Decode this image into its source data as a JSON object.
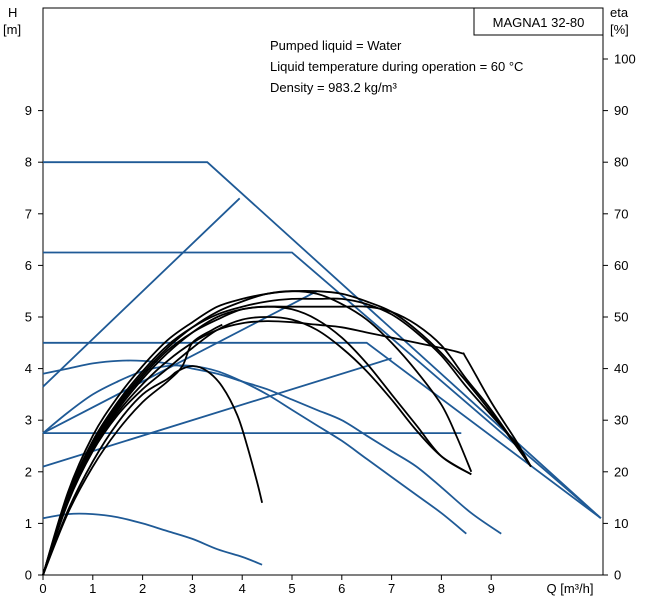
{
  "chart_data": {
    "type": "line",
    "title": "MAGNA1 32-80",
    "info_lines": [
      "Pumped liquid = Water",
      "Liquid temperature during operation = 60 °C",
      "Density = 983.2 kg/m³"
    ],
    "y_left": {
      "label_top": "H",
      "label_unit": "[m]",
      "ticks": [
        "0",
        "1",
        "2",
        "3",
        "4",
        "5",
        "6",
        "7",
        "8",
        "9"
      ],
      "range": [
        0,
        10
      ]
    },
    "y_right": {
      "label_top": "eta",
      "label_unit": "[%]",
      "ticks": [
        "0",
        "10",
        "20",
        "30",
        "40",
        "50",
        "60",
        "70",
        "80",
        "90",
        "100"
      ],
      "range": [
        0,
        100
      ]
    },
    "x": {
      "label": "Q [m³/h]",
      "ticks": [
        "0",
        "1",
        "2",
        "3",
        "4",
        "5",
        "6",
        "7",
        "8",
        "9"
      ],
      "range": [
        0,
        11.2
      ]
    },
    "colors": {
      "control": "#1f5a96",
      "efficiency": "#1f5a96",
      "performance": "#000000"
    },
    "control_curves": [
      {
        "points": [
          [
            0,
            8.0
          ],
          [
            3.3,
            8.0
          ],
          [
            11.2,
            1.1
          ]
        ]
      },
      {
        "points": [
          [
            0,
            6.25
          ],
          [
            5.0,
            6.25
          ],
          [
            11.2,
            1.1
          ]
        ]
      },
      {
        "points": [
          [
            0,
            4.5
          ],
          [
            6.5,
            4.5
          ],
          [
            11.2,
            1.1
          ]
        ]
      },
      {
        "points": [
          [
            0,
            2.75
          ],
          [
            8.4,
            2.75
          ]
        ]
      },
      {
        "points": [
          [
            0,
            3.65
          ],
          [
            3.95,
            7.3
          ]
        ]
      },
      {
        "points": [
          [
            0,
            2.75
          ],
          [
            5.5,
            5.5
          ]
        ]
      },
      {
        "points": [
          [
            0,
            2.1
          ],
          [
            7.0,
            4.2
          ]
        ]
      }
    ],
    "efficiency_curves": [
      {
        "points": [
          [
            0,
            3.9
          ],
          [
            0.5,
            4.0
          ],
          [
            1.0,
            4.1
          ],
          [
            1.5,
            4.15
          ],
          [
            2.0,
            4.15
          ],
          [
            2.5,
            4.1
          ],
          [
            3.0,
            4.0
          ],
          [
            3.5,
            3.9
          ],
          [
            4.0,
            3.75
          ],
          [
            4.5,
            3.6
          ],
          [
            5.0,
            3.4
          ],
          [
            5.5,
            3.2
          ],
          [
            6.0,
            3.0
          ],
          [
            6.5,
            2.7
          ],
          [
            7.0,
            2.4
          ],
          [
            7.5,
            2.1
          ],
          [
            8.0,
            1.7
          ],
          [
            8.6,
            1.2
          ],
          [
            9.2,
            0.8
          ]
        ]
      },
      {
        "points": [
          [
            0,
            2.75
          ],
          [
            0.5,
            3.15
          ],
          [
            1.0,
            3.5
          ],
          [
            1.5,
            3.75
          ],
          [
            2.0,
            3.95
          ],
          [
            2.5,
            4.05
          ],
          [
            3.0,
            4.05
          ],
          [
            3.5,
            3.95
          ],
          [
            4.0,
            3.75
          ],
          [
            4.5,
            3.5
          ],
          [
            5.0,
            3.2
          ],
          [
            5.5,
            2.9
          ],
          [
            6.0,
            2.6
          ],
          [
            6.5,
            2.25
          ],
          [
            7.0,
            1.9
          ],
          [
            7.5,
            1.55
          ],
          [
            8.0,
            1.2
          ],
          [
            8.5,
            0.8
          ]
        ]
      },
      {
        "points": [
          [
            0,
            1.1
          ],
          [
            0.5,
            1.18
          ],
          [
            1.0,
            1.18
          ],
          [
            1.5,
            1.12
          ],
          [
            2.0,
            1.0
          ],
          [
            2.5,
            0.85
          ],
          [
            3.0,
            0.7
          ],
          [
            3.5,
            0.5
          ],
          [
            4.0,
            0.35
          ],
          [
            4.4,
            0.2
          ]
        ]
      }
    ],
    "performance_curves": [
      {
        "points": [
          [
            0,
            0
          ],
          [
            0.5,
            1.6
          ],
          [
            1.0,
            2.7
          ],
          [
            1.5,
            3.45
          ],
          [
            2.0,
            4.05
          ],
          [
            2.5,
            4.55
          ],
          [
            3.0,
            4.9
          ],
          [
            3.5,
            5.2
          ],
          [
            4.0,
            5.35
          ],
          [
            4.5,
            5.45
          ],
          [
            5.0,
            5.5
          ],
          [
            5.5,
            5.5
          ],
          [
            6.0,
            5.45
          ],
          [
            6.5,
            5.3
          ],
          [
            7.0,
            5.1
          ],
          [
            7.5,
            4.75
          ],
          [
            8.0,
            4.3
          ],
          [
            8.5,
            3.75
          ],
          [
            9.0,
            3.15
          ],
          [
            9.5,
            2.5
          ],
          [
            9.8,
            2.1
          ]
        ]
      },
      {
        "points": [
          [
            0,
            0
          ],
          [
            0.5,
            1.55
          ],
          [
            1.0,
            2.6
          ],
          [
            1.5,
            3.35
          ],
          [
            2.0,
            3.95
          ],
          [
            2.5,
            4.45
          ],
          [
            3.0,
            4.8
          ],
          [
            3.5,
            5.05
          ],
          [
            4.0,
            5.2
          ],
          [
            4.5,
            5.3
          ],
          [
            5.0,
            5.35
          ],
          [
            5.5,
            5.35
          ],
          [
            6.0,
            5.35
          ],
          [
            6.5,
            5.25
          ],
          [
            7.0,
            5.05
          ],
          [
            7.5,
            4.7
          ],
          [
            8.0,
            4.25
          ],
          [
            8.5,
            3.65
          ],
          [
            9.0,
            3.1
          ],
          [
            9.5,
            2.55
          ],
          [
            9.8,
            2.1
          ]
        ]
      },
      {
        "points": [
          [
            0,
            0
          ],
          [
            0.5,
            1.5
          ],
          [
            1.0,
            2.5
          ],
          [
            1.5,
            3.25
          ],
          [
            2.0,
            3.85
          ],
          [
            2.5,
            4.35
          ],
          [
            3.0,
            4.7
          ],
          [
            3.5,
            4.95
          ],
          [
            4.0,
            5.15
          ],
          [
            4.5,
            5.2
          ],
          [
            5.0,
            5.2
          ],
          [
            5.5,
            5.2
          ],
          [
            6.0,
            5.2
          ],
          [
            6.5,
            5.2
          ],
          [
            7.0,
            5.1
          ],
          [
            7.5,
            4.85
          ],
          [
            8.0,
            4.45
          ],
          [
            8.5,
            3.8
          ],
          [
            9.0,
            3.2
          ],
          [
            9.8,
            2.1
          ]
        ]
      },
      {
        "points": [
          [
            0,
            0
          ],
          [
            0.5,
            1.45
          ],
          [
            1.0,
            2.45
          ],
          [
            1.5,
            3.15
          ],
          [
            2.0,
            3.7
          ],
          [
            2.5,
            4.15
          ],
          [
            3.0,
            4.5
          ],
          [
            3.5,
            4.75
          ],
          [
            4.0,
            4.88
          ],
          [
            4.5,
            4.92
          ],
          [
            5.0,
            4.9
          ],
          [
            5.5,
            4.85
          ],
          [
            6.0,
            4.8
          ],
          [
            6.5,
            4.7
          ],
          [
            7.0,
            4.6
          ],
          [
            7.5,
            4.5
          ],
          [
            8.0,
            4.4
          ],
          [
            8.4,
            4.3
          ],
          [
            8.5,
            4.2
          ],
          [
            9.0,
            3.35
          ],
          [
            9.5,
            2.6
          ],
          [
            9.8,
            2.1
          ]
        ]
      },
      {
        "points": [
          [
            0,
            0
          ],
          [
            0.5,
            1.5
          ],
          [
            1.0,
            2.55
          ],
          [
            1.5,
            3.3
          ],
          [
            2.0,
            3.9
          ],
          [
            2.5,
            4.4
          ],
          [
            3.0,
            4.8
          ],
          [
            3.5,
            5.1
          ],
          [
            4.0,
            5.3
          ],
          [
            4.5,
            5.45
          ],
          [
            5.0,
            5.5
          ],
          [
            5.5,
            5.45
          ],
          [
            6.0,
            5.25
          ],
          [
            6.5,
            4.95
          ],
          [
            7.0,
            4.5
          ],
          [
            7.5,
            3.95
          ],
          [
            8.0,
            3.3
          ],
          [
            8.3,
            2.7
          ],
          [
            8.6,
            2.0
          ]
        ]
      },
      {
        "points": [
          [
            0,
            0
          ],
          [
            0.5,
            1.45
          ],
          [
            1.0,
            2.45
          ],
          [
            1.5,
            3.2
          ],
          [
            2.0,
            3.8
          ],
          [
            2.5,
            4.3
          ],
          [
            3.0,
            4.7
          ],
          [
            3.5,
            5.0
          ],
          [
            4.0,
            5.15
          ],
          [
            4.5,
            5.2
          ],
          [
            5.0,
            5.15
          ],
          [
            5.5,
            4.95
          ],
          [
            6.0,
            4.6
          ],
          [
            6.5,
            4.1
          ],
          [
            7.0,
            3.5
          ],
          [
            7.5,
            2.9
          ],
          [
            8.0,
            2.3
          ],
          [
            8.6,
            1.95
          ]
        ]
      },
      {
        "points": [
          [
            0,
            0
          ],
          [
            0.5,
            1.4
          ],
          [
            1.0,
            2.4
          ],
          [
            1.5,
            3.1
          ],
          [
            2.0,
            3.6
          ],
          [
            2.5,
            4.0
          ],
          [
            3.0,
            4.4
          ],
          [
            3.5,
            4.75
          ],
          [
            4.0,
            4.95
          ],
          [
            4.5,
            5.0
          ],
          [
            5.0,
            4.95
          ],
          [
            5.5,
            4.75
          ],
          [
            6.0,
            4.4
          ],
          [
            6.5,
            3.95
          ],
          [
            7.0,
            3.4
          ],
          [
            7.5,
            2.8
          ],
          [
            8.0,
            2.3
          ],
          [
            8.6,
            1.95
          ]
        ]
      },
      {
        "points": [
          [
            0,
            0
          ],
          [
            0.5,
            1.25
          ],
          [
            1.0,
            2.2
          ],
          [
            1.5,
            2.95
          ],
          [
            2.0,
            3.5
          ],
          [
            2.5,
            3.8
          ],
          [
            2.7,
            3.95
          ],
          [
            3.0,
            4.05
          ],
          [
            3.3,
            3.95
          ],
          [
            3.6,
            3.65
          ],
          [
            3.9,
            3.1
          ],
          [
            4.1,
            2.5
          ],
          [
            4.3,
            1.8
          ],
          [
            4.4,
            1.4
          ]
        ]
      },
      {
        "points": [
          [
            0,
            0
          ],
          [
            0.5,
            1.2
          ],
          [
            1.0,
            2.1
          ],
          [
            1.5,
            2.8
          ],
          [
            2.0,
            3.35
          ],
          [
            2.5,
            3.75
          ],
          [
            2.8,
            4.05
          ],
          [
            3.0,
            4.5
          ],
          [
            3.4,
            4.75
          ],
          [
            3.6,
            4.85
          ]
        ]
      }
    ]
  }
}
